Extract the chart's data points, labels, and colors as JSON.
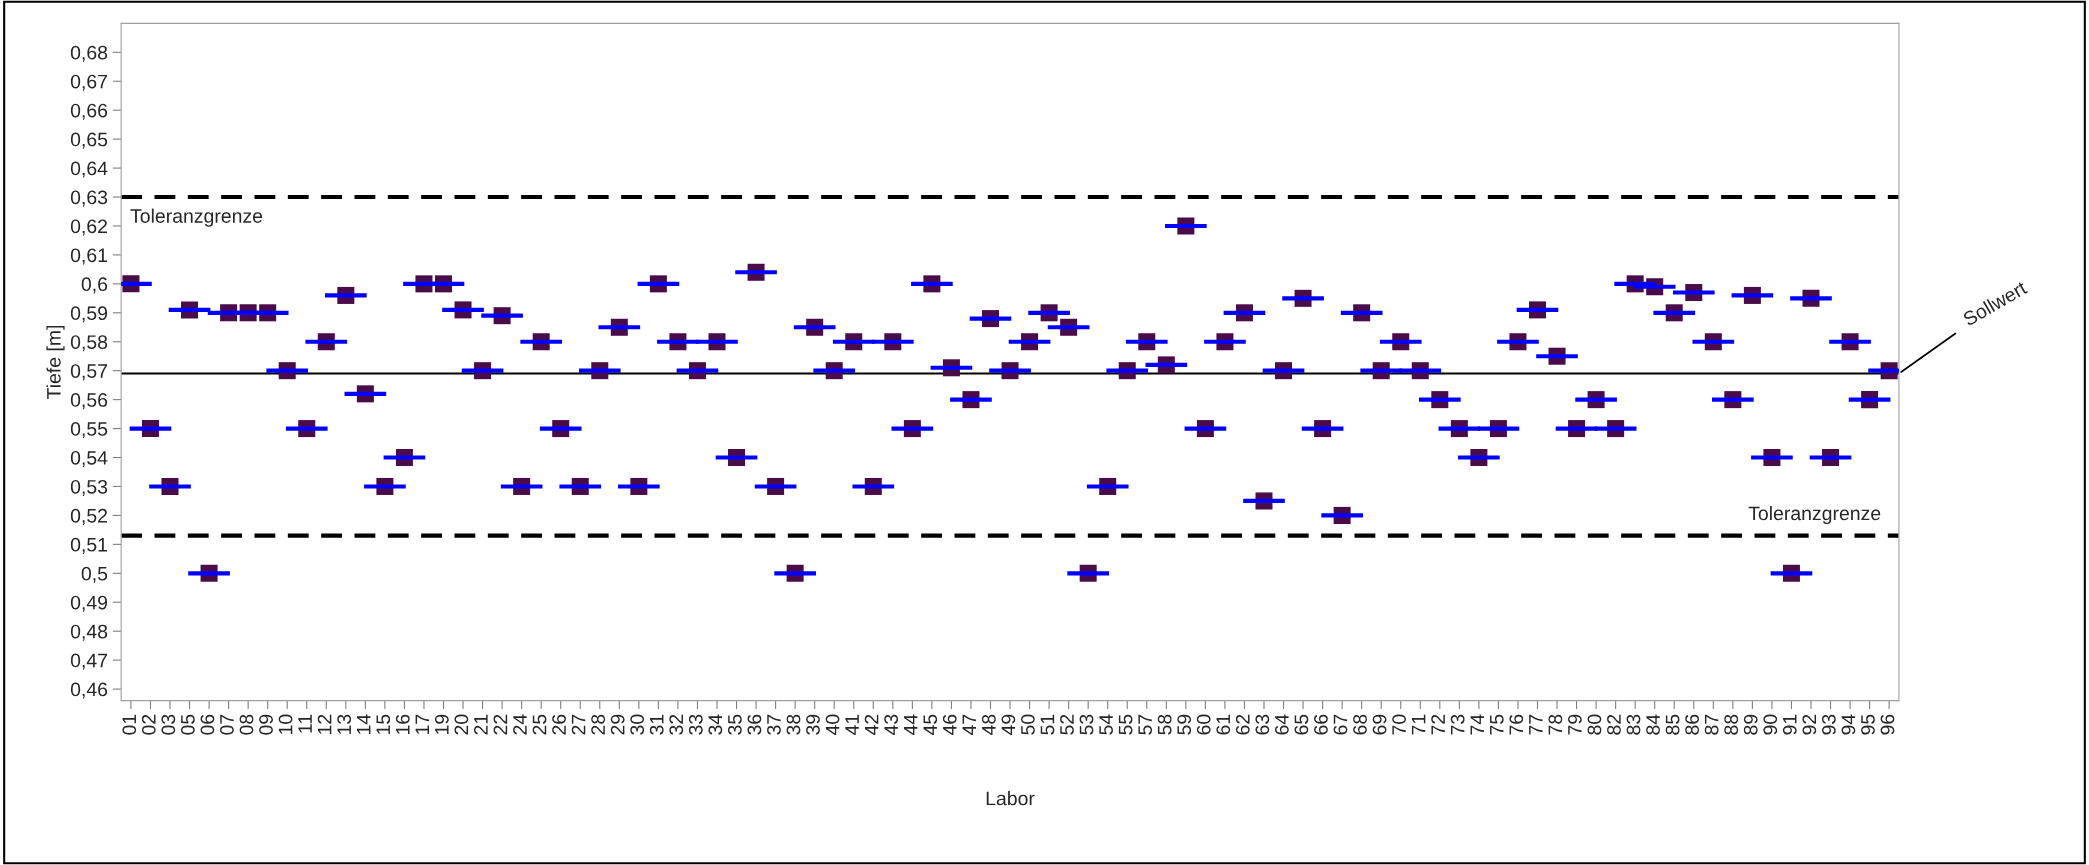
{
  "chart_data": {
    "type": "scatter",
    "xlabel": "Labor",
    "ylabel": "Tiefe [m]",
    "categories": [
      "01",
      "02",
      "03",
      "05",
      "06",
      "07",
      "08",
      "09",
      "10",
      "11",
      "12",
      "13",
      "14",
      "15",
      "16",
      "17",
      "19",
      "20",
      "21",
      "22",
      "24",
      "25",
      "26",
      "27",
      "28",
      "29",
      "30",
      "31",
      "32",
      "33",
      "34",
      "35",
      "36",
      "37",
      "38",
      "39",
      "40",
      "41",
      "42",
      "43",
      "44",
      "45",
      "46",
      "47",
      "48",
      "49",
      "50",
      "51",
      "52",
      "53",
      "54",
      "55",
      "57",
      "58",
      "59",
      "60",
      "61",
      "62",
      "63",
      "64",
      "65",
      "66",
      "67",
      "68",
      "69",
      "70",
      "71",
      "72",
      "73",
      "74",
      "75",
      "76",
      "77",
      "78",
      "79",
      "80",
      "82",
      "83",
      "84",
      "85",
      "86",
      "87",
      "88",
      "89",
      "90",
      "91",
      "92",
      "93",
      "94",
      "95",
      "96"
    ],
    "series": [
      {
        "color": "#4a0b4a",
        "values": [
          0.6,
          0.55,
          0.53,
          0.591,
          0.5,
          0.59,
          0.59,
          0.59,
          0.57,
          0.55,
          0.58,
          0.596,
          0.562,
          0.53,
          0.54,
          0.6,
          0.6,
          0.591,
          0.57,
          0.589,
          0.53,
          0.58,
          0.55,
          0.53,
          0.57,
          0.585,
          0.53,
          0.6,
          0.58,
          0.57,
          0.58,
          0.54,
          0.604,
          0.53,
          0.5,
          0.585,
          0.57,
          0.58,
          0.53,
          0.58,
          0.55,
          0.6,
          0.571,
          0.56,
          0.588,
          0.57,
          0.58,
          0.59,
          0.585,
          0.5,
          0.53,
          0.57,
          0.58,
          0.572,
          0.62,
          0.55,
          0.58,
          0.59,
          0.525,
          0.57,
          0.595,
          0.55,
          0.52,
          0.59,
          0.57,
          0.58,
          0.57,
          0.56,
          0.55,
          0.54,
          0.55,
          0.58,
          0.591,
          0.575,
          0.55,
          0.56,
          0.55,
          0.6,
          0.599,
          0.59,
          0.597,
          0.58,
          0.56,
          0.596,
          0.54,
          0.5,
          0.595,
          0.54,
          0.58,
          0.56,
          0.57
        ]
      }
    ],
    "marker": "square",
    "ylim": [
      0.456,
      0.69
    ],
    "yticks": [
      {
        "value": 0.46,
        "label": "0,46"
      },
      {
        "value": 0.47,
        "label": "0,47"
      },
      {
        "value": 0.48,
        "label": "0,48"
      },
      {
        "value": 0.49,
        "label": "0,49"
      },
      {
        "value": 0.5,
        "label": "0,5"
      },
      {
        "value": 0.51,
        "label": "0,51"
      },
      {
        "value": 0.52,
        "label": "0,52"
      },
      {
        "value": 0.53,
        "label": "0,53"
      },
      {
        "value": 0.54,
        "label": "0,54"
      },
      {
        "value": 0.55,
        "label": "0,55"
      },
      {
        "value": 0.56,
        "label": "0,56"
      },
      {
        "value": 0.57,
        "label": "0,57"
      },
      {
        "value": 0.58,
        "label": "0,58"
      },
      {
        "value": 0.59,
        "label": "0,59"
      },
      {
        "value": 0.6,
        "label": "0,6"
      },
      {
        "value": 0.61,
        "label": "0,61"
      },
      {
        "value": 0.62,
        "label": "0,62"
      },
      {
        "value": 0.63,
        "label": "0,63"
      },
      {
        "value": 0.64,
        "label": "0,64"
      },
      {
        "value": 0.65,
        "label": "0,65"
      },
      {
        "value": 0.66,
        "label": "0,66"
      },
      {
        "value": 0.67,
        "label": "0,67"
      },
      {
        "value": 0.68,
        "label": "0,68"
      }
    ],
    "ref_lines": [
      {
        "axis": "y",
        "value": 0.63,
        "label": "Toleranzgrenze",
        "line_style": "dashed",
        "color": "#000000"
      },
      {
        "axis": "y",
        "value": 0.513,
        "label": "Toleranzgrenze",
        "line_style": "dashed",
        "color": "#000000"
      },
      {
        "axis": "y",
        "value": 0.569,
        "label": "Sollwert",
        "line_style": "solid",
        "color": "#000000"
      }
    ],
    "grid": false
  }
}
